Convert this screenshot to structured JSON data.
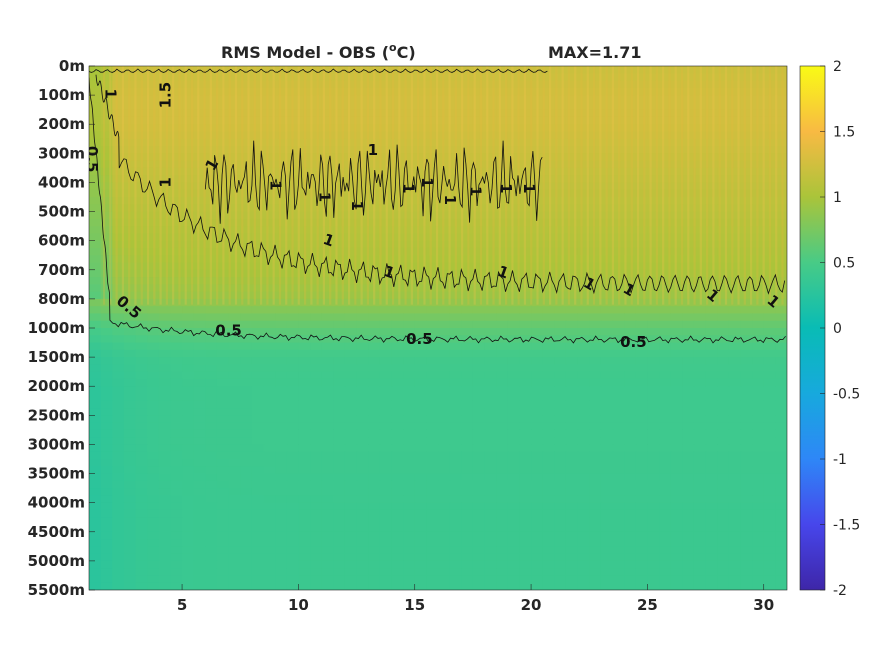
{
  "chart_data": {
    "type": "heatmap",
    "title": "RMS Model - OBS (",
    "title_sup": "o",
    "title_end": "C)",
    "max_label": "MAX=1.71",
    "xlabel": "",
    "ylabel": "",
    "x_ticks": [
      5,
      10,
      15,
      20,
      25,
      30
    ],
    "xlim": [
      1,
      31
    ],
    "y_ticks": [
      "0m",
      "100m",
      "200m",
      "300m",
      "400m",
      "500m",
      "600m",
      "700m",
      "800m",
      "1000m",
      "1500m",
      "2000m",
      "2500m",
      "3000m",
      "3500m",
      "4000m",
      "4500m",
      "5000m",
      "5500m"
    ],
    "colorbar": {
      "ticks": [
        2,
        1.5,
        1,
        0.5,
        0,
        -0.5,
        -1,
        -1.5,
        -2
      ],
      "tick_labels": [
        "2",
        "1.5",
        "1",
        "0.5",
        "0",
        "-0.5",
        "-1",
        "-1.5",
        "-2"
      ],
      "range": [
        -2,
        2
      ],
      "colormap": "parula"
    },
    "profile": {
      "depth_levels": [
        "0m",
        "100m",
        "200m",
        "300m",
        "400m",
        "500m",
        "600m",
        "700m",
        "800m",
        "1000m",
        "1500m",
        "2000m",
        "2500m",
        "3000m",
        "3500m",
        "4000m",
        "4500m",
        "5000m",
        "5500m"
      ],
      "rms_values": [
        1.2,
        1.25,
        1.25,
        1.2,
        1.15,
        1.1,
        1.05,
        1.0,
        0.92,
        0.62,
        0.45,
        0.42,
        0.42,
        0.42,
        0.41,
        0.4,
        0.4,
        0.4,
        0.4
      ]
    },
    "contour_labels": [
      {
        "text": "1",
        "x": 1.9,
        "depth_index": 0.95,
        "rotate": 90
      },
      {
        "text": "1.5",
        "x": 4.3,
        "depth_index": 1.0,
        "rotate": -90
      },
      {
        "text": "0.5",
        "x": 1.1,
        "depth_index": 3.2,
        "rotate": 90
      },
      {
        "text": "1",
        "x": 4.3,
        "depth_index": 4.0,
        "rotate": -90
      },
      {
        "text": "1",
        "x": 6.3,
        "depth_index": 3.4,
        "rotate": -60
      },
      {
        "text": "0.5",
        "x": 2.7,
        "depth_index": 8.3,
        "rotate": 40
      },
      {
        "text": "0.5",
        "x": 7.0,
        "depth_index": 9.1,
        "rotate": 0
      },
      {
        "text": "0.5",
        "x": 15.2,
        "depth_index": 9.4,
        "rotate": 0
      },
      {
        "text": "0.5",
        "x": 24.4,
        "depth_index": 9.5,
        "rotate": 0
      },
      {
        "text": "1",
        "x": 13.9,
        "depth_index": 7.1,
        "rotate": 20
      },
      {
        "text": "1",
        "x": 18.8,
        "depth_index": 7.1,
        "rotate": 20
      },
      {
        "text": "1",
        "x": 22.5,
        "depth_index": 7.5,
        "rotate": 30
      },
      {
        "text": "1",
        "x": 24.2,
        "depth_index": 7.7,
        "rotate": 30
      },
      {
        "text": "1",
        "x": 27.8,
        "depth_index": 7.9,
        "rotate": 40
      },
      {
        "text": "1",
        "x": 30.4,
        "depth_index": 8.1,
        "rotate": 40
      },
      {
        "text": "1",
        "x": 13.2,
        "depth_index": 2.9,
        "rotate": 0
      },
      {
        "text": "1",
        "x": 9.0,
        "depth_index": 4.1,
        "rotate": 90
      },
      {
        "text": "1",
        "x": 11.1,
        "depth_index": 4.5,
        "rotate": 90
      },
      {
        "text": "1",
        "x": 12.5,
        "depth_index": 4.8,
        "rotate": 90
      },
      {
        "text": "1",
        "x": 14.7,
        "depth_index": 4.2,
        "rotate": 90
      },
      {
        "text": "1",
        "x": 15.5,
        "depth_index": 4.0,
        "rotate": 90
      },
      {
        "text": "1",
        "x": 16.5,
        "depth_index": 4.6,
        "rotate": 90
      },
      {
        "text": "1",
        "x": 17.6,
        "depth_index": 4.3,
        "rotate": 90
      },
      {
        "text": "1",
        "x": 18.9,
        "depth_index": 4.2,
        "rotate": 90
      },
      {
        "text": "1",
        "x": 19.9,
        "depth_index": 4.2,
        "rotate": 90
      },
      {
        "text": "1",
        "x": 11.3,
        "depth_index": 6.0,
        "rotate": 20
      }
    ]
  }
}
